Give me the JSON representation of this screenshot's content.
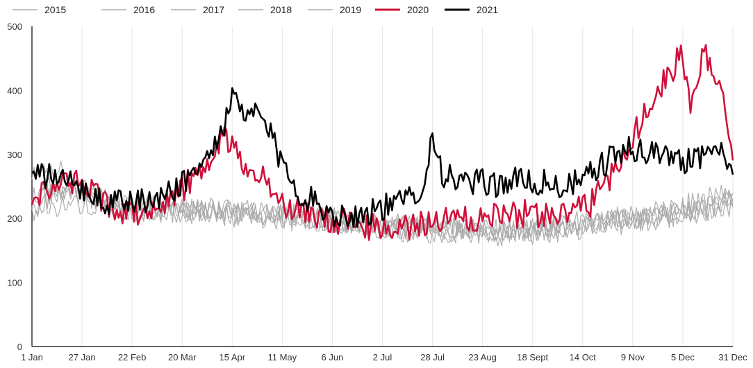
{
  "chart_data": {
    "type": "line",
    "title": "",
    "xlabel": "",
    "ylabel": "",
    "ylim": [
      0,
      500
    ],
    "xlim": [
      1,
      365
    ],
    "y_ticks": [
      0,
      100,
      200,
      300,
      400,
      500
    ],
    "x_ticks": [
      {
        "label": "1 Jan",
        "day": 1
      },
      {
        "label": "27 Jan",
        "day": 27
      },
      {
        "label": "22 Feb",
        "day": 53
      },
      {
        "label": "20 Mar",
        "day": 79
      },
      {
        "label": "15 Apr",
        "day": 105
      },
      {
        "label": "11 May",
        "day": 131
      },
      {
        "label": "6 Jun",
        "day": 157
      },
      {
        "label": "2 Jul",
        "day": 183
      },
      {
        "label": "28 Jul",
        "day": 209
      },
      {
        "label": "23 Aug",
        "day": 235
      },
      {
        "label": "18 Sept",
        "day": 261
      },
      {
        "label": "14 Oct",
        "day": 287
      },
      {
        "label": "9 Nov",
        "day": 313
      },
      {
        "label": "5 Dec",
        "day": 339
      },
      {
        "label": "31 Dec",
        "day": 365
      }
    ],
    "grid": {
      "vertical": true,
      "horizontal": false
    },
    "legend_position": "top-left",
    "colors": {
      "past_years": "#aaaaaa",
      "2020": "#d0103a",
      "2021": "#000000",
      "grid": "#e6e6e6",
      "axis": "#333333"
    },
    "series": [
      {
        "name": "2015",
        "color": "#aaaaaa",
        "points": [
          [
            1,
            220
          ],
          [
            20,
            245
          ],
          [
            45,
            215
          ],
          [
            75,
            210
          ],
          [
            100,
            205
          ],
          [
            125,
            200
          ],
          [
            150,
            195
          ],
          [
            175,
            190
          ],
          [
            200,
            185
          ],
          [
            225,
            190
          ],
          [
            250,
            185
          ],
          [
            275,
            190
          ],
          [
            300,
            200
          ],
          [
            325,
            205
          ],
          [
            345,
            205
          ],
          [
            365,
            215
          ]
        ]
      },
      {
        "name": "2016",
        "color": "#aaaaaa",
        "points": [
          [
            1,
            240
          ],
          [
            20,
            255
          ],
          [
            45,
            220
          ],
          [
            75,
            215
          ],
          [
            100,
            210
          ],
          [
            125,
            205
          ],
          [
            150,
            195
          ],
          [
            175,
            185
          ],
          [
            200,
            180
          ],
          [
            225,
            180
          ],
          [
            250,
            180
          ],
          [
            275,
            185
          ],
          [
            300,
            195
          ],
          [
            325,
            200
          ],
          [
            345,
            215
          ],
          [
            365,
            225
          ]
        ]
      },
      {
        "name": "2017",
        "color": "#aaaaaa",
        "points": [
          [
            1,
            265
          ],
          [
            15,
            275
          ],
          [
            40,
            225
          ],
          [
            75,
            215
          ],
          [
            100,
            215
          ],
          [
            125,
            210
          ],
          [
            150,
            200
          ],
          [
            175,
            185
          ],
          [
            200,
            185
          ],
          [
            225,
            185
          ],
          [
            250,
            180
          ],
          [
            275,
            180
          ],
          [
            300,
            200
          ],
          [
            325,
            205
          ],
          [
            345,
            210
          ],
          [
            365,
            230
          ]
        ]
      },
      {
        "name": "2018",
        "color": "#aaaaaa",
        "points": [
          [
            1,
            210
          ],
          [
            20,
            225
          ],
          [
            45,
            210
          ],
          [
            75,
            210
          ],
          [
            100,
            210
          ],
          [
            125,
            205
          ],
          [
            150,
            205
          ],
          [
            175,
            190
          ],
          [
            200,
            180
          ],
          [
            225,
            175
          ],
          [
            250,
            175
          ],
          [
            275,
            180
          ],
          [
            300,
            190
          ],
          [
            325,
            200
          ],
          [
            345,
            210
          ],
          [
            365,
            220
          ]
        ]
      },
      {
        "name": "2019",
        "color": "#aaaaaa",
        "points": [
          [
            1,
            235
          ],
          [
            20,
            245
          ],
          [
            45,
            220
          ],
          [
            75,
            220
          ],
          [
            100,
            215
          ],
          [
            125,
            210
          ],
          [
            150,
            200
          ],
          [
            175,
            190
          ],
          [
            200,
            190
          ],
          [
            225,
            180
          ],
          [
            250,
            180
          ],
          [
            275,
            185
          ],
          [
            300,
            195
          ],
          [
            325,
            210
          ],
          [
            345,
            225
          ],
          [
            365,
            240
          ]
        ]
      },
      {
        "name": "2020",
        "color": "#d0103a",
        "points": [
          [
            1,
            230
          ],
          [
            10,
            250
          ],
          [
            20,
            260
          ],
          [
            30,
            245
          ],
          [
            45,
            215
          ],
          [
            60,
            205
          ],
          [
            70,
            225
          ],
          [
            80,
            250
          ],
          [
            90,
            275
          ],
          [
            95,
            300
          ],
          [
            100,
            330
          ],
          [
            105,
            320
          ],
          [
            110,
            280
          ],
          [
            115,
            260
          ],
          [
            120,
            265
          ],
          [
            125,
            245
          ],
          [
            130,
            225
          ],
          [
            140,
            210
          ],
          [
            150,
            200
          ],
          [
            160,
            195
          ],
          [
            170,
            190
          ],
          [
            180,
            185
          ],
          [
            190,
            185
          ],
          [
            200,
            190
          ],
          [
            210,
            195
          ],
          [
            220,
            200
          ],
          [
            230,
            200
          ],
          [
            240,
            205
          ],
          [
            250,
            205
          ],
          [
            260,
            210
          ],
          [
            270,
            205
          ],
          [
            280,
            210
          ],
          [
            290,
            220
          ],
          [
            295,
            240
          ],
          [
            300,
            260
          ],
          [
            305,
            270
          ],
          [
            310,
            310
          ],
          [
            315,
            340
          ],
          [
            320,
            375
          ],
          [
            325,
            400
          ],
          [
            330,
            420
          ],
          [
            335,
            440
          ],
          [
            338,
            460
          ],
          [
            340,
            430
          ],
          [
            343,
            380
          ],
          [
            346,
            420
          ],
          [
            350,
            460
          ],
          [
            353,
            435
          ],
          [
            356,
            420
          ],
          [
            360,
            390
          ],
          [
            362,
            360
          ],
          [
            365,
            300
          ]
        ]
      },
      {
        "name": "2021",
        "color": "#000000",
        "points": [
          [
            1,
            265
          ],
          [
            10,
            265
          ],
          [
            20,
            255
          ],
          [
            30,
            245
          ],
          [
            40,
            225
          ],
          [
            50,
            225
          ],
          [
            60,
            225
          ],
          [
            70,
            235
          ],
          [
            80,
            260
          ],
          [
            90,
            285
          ],
          [
            95,
            310
          ],
          [
            100,
            340
          ],
          [
            104,
            380
          ],
          [
            107,
            385
          ],
          [
            112,
            350
          ],
          [
            118,
            370
          ],
          [
            125,
            330
          ],
          [
            130,
            290
          ],
          [
            135,
            270
          ],
          [
            140,
            240
          ],
          [
            150,
            220
          ],
          [
            160,
            205
          ],
          [
            170,
            205
          ],
          [
            180,
            215
          ],
          [
            190,
            220
          ],
          [
            200,
            240
          ],
          [
            205,
            260
          ],
          [
            209,
            330
          ],
          [
            215,
            265
          ],
          [
            225,
            255
          ],
          [
            235,
            255
          ],
          [
            245,
            255
          ],
          [
            255,
            260
          ],
          [
            265,
            255
          ],
          [
            275,
            250
          ],
          [
            285,
            255
          ],
          [
            290,
            265
          ],
          [
            295,
            280
          ],
          [
            300,
            290
          ],
          [
            305,
            300
          ],
          [
            310,
            305
          ],
          [
            315,
            310
          ],
          [
            320,
            300
          ],
          [
            325,
            305
          ],
          [
            330,
            295
          ],
          [
            335,
            300
          ],
          [
            340,
            290
          ],
          [
            345,
            300
          ],
          [
            350,
            300
          ],
          [
            355,
            310
          ],
          [
            360,
            295
          ],
          [
            365,
            290
          ]
        ]
      }
    ]
  }
}
